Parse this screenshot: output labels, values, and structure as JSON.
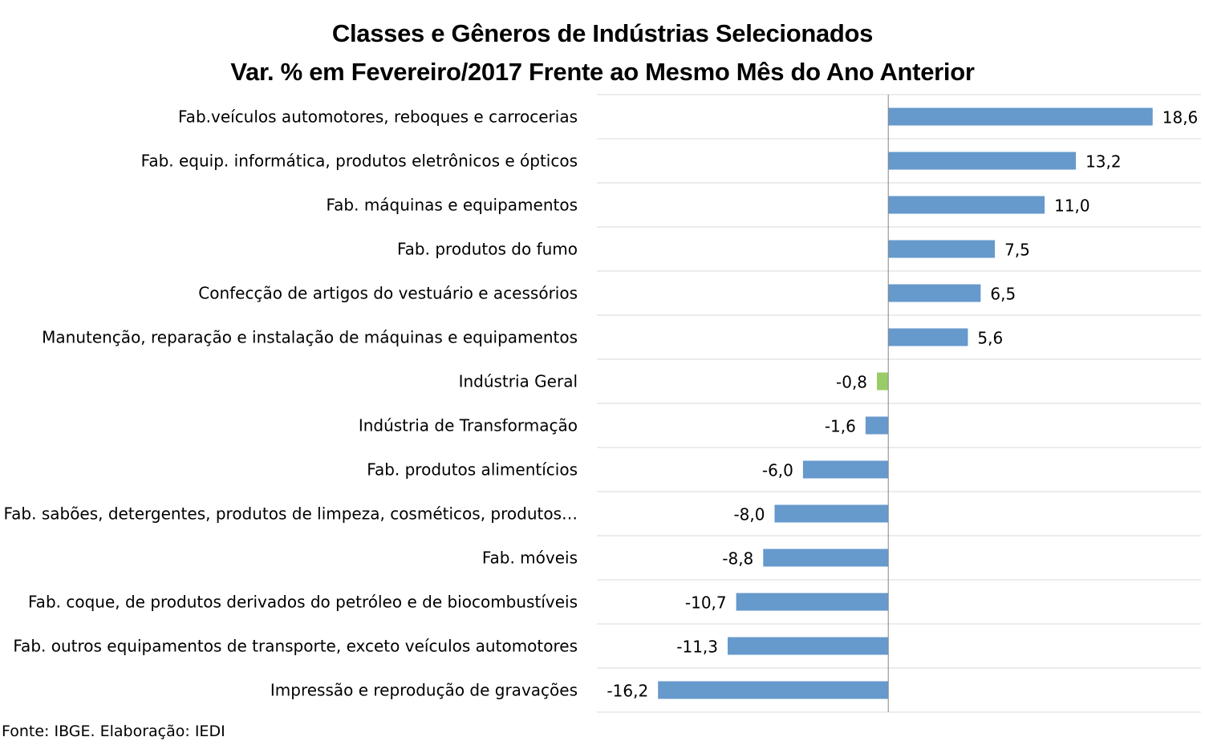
{
  "chart_data": {
    "type": "bar",
    "orientation": "horizontal",
    "title": "Classes e Gêneros de Indústrias Selecionados",
    "subtitle": "Var. % em Fevereiro/2017 Frente ao Mesmo Mês do Ano Anterior",
    "categories": [
      "Fab.veículos automotores, reboques e carrocerias",
      "Fab. equip. informática, produtos eletrônicos e ópticos",
      "Fab. máquinas e equipamentos",
      "Fab. produtos do fumo",
      "Confecção de artigos do vestuário e acessórios",
      "Manutenção, reparação e instalação de máquinas e equipamentos",
      "Indústria Geral",
      "Indústria de Transformação",
      "Fab. produtos alimentícios",
      "Fab. sabões, detergentes, produtos de limpeza, cosméticos, produtos…",
      "Fab. móveis",
      "Fab. coque, de produtos derivados do petróleo e de biocombustíveis",
      "Fab. outros equipamentos de transporte, exceto veículos automotores",
      "Impressão e reprodução de gravações"
    ],
    "values": [
      18.6,
      13.2,
      11.0,
      7.5,
      6.5,
      5.6,
      -0.8,
      -1.6,
      -6.0,
      -8.0,
      -8.8,
      -10.7,
      -11.3,
      -16.2
    ],
    "data_labels": [
      "18,6",
      "13,2",
      "11,0",
      "7,5",
      "6,5",
      "5,6",
      "-0,8",
      "-1,6",
      "-6,0",
      "-8,0",
      "-8,8",
      "-10,7",
      "-11,3",
      "-16,2"
    ],
    "highlight_category": "Indústria Geral",
    "xlim": [
      -20.5,
      22
    ],
    "grid": "horizontal separators between categories",
    "colors": {
      "bar": "#6699CC",
      "highlight": "#99CC66",
      "grid": "#D9D9D9",
      "axis": "#868686"
    }
  },
  "source": "Fonte: IBGE. Elaboração: IEDI"
}
